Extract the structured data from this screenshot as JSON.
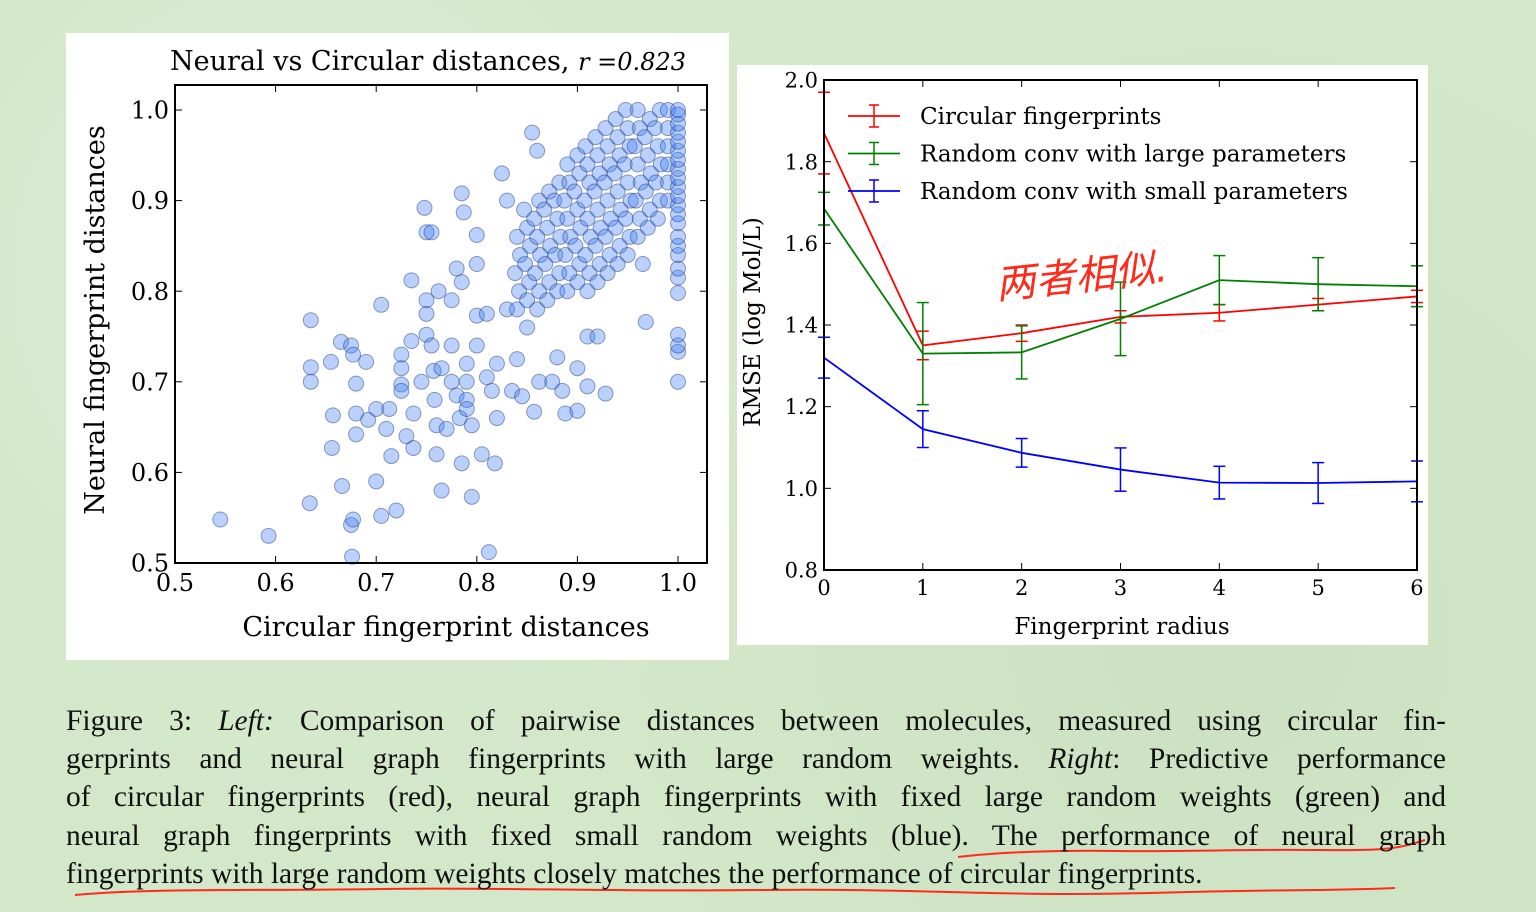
{
  "colors": {
    "background": "#d3e7c9",
    "scatter_fill": "#3a7bff",
    "red": "#ff0000",
    "green": "#008000",
    "blue": "#0000ff",
    "annotation": "#ff2a1a"
  },
  "chart_data": [
    {
      "type": "scatter",
      "title": "Neural vs Circular distances, ",
      "title_math": "r =0.823",
      "xlabel": "Circular fingerprint distances",
      "ylabel": "Neural fingerprint distances",
      "xlim": [
        0.5,
        1.03
      ],
      "ylim": [
        0.5,
        1.03
      ],
      "xticks": [
        "0.5",
        "0.6",
        "0.7",
        "0.8",
        "0.9",
        "1.0"
      ],
      "yticks": [
        "0.5",
        "0.6",
        "0.7",
        "0.8",
        "0.9",
        "1.0"
      ],
      "points": [
        [
          0.545,
          0.548
        ],
        [
          0.593,
          0.53
        ],
        [
          0.635,
          0.768
        ],
        [
          0.635,
          0.716
        ],
        [
          0.635,
          0.7
        ],
        [
          0.634,
          0.566
        ],
        [
          0.655,
          0.722
        ],
        [
          0.657,
          0.663
        ],
        [
          0.656,
          0.627
        ],
        [
          0.665,
          0.744
        ],
        [
          0.666,
          0.585
        ],
        [
          0.675,
          0.74
        ],
        [
          0.677,
          0.73
        ],
        [
          0.68,
          0.698
        ],
        [
          0.68,
          0.665
        ],
        [
          0.68,
          0.642
        ],
        [
          0.69,
          0.722
        ],
        [
          0.692,
          0.658
        ],
        [
          0.7,
          0.67
        ],
        [
          0.7,
          0.59
        ],
        [
          0.705,
          0.785
        ],
        [
          0.71,
          0.648
        ],
        [
          0.713,
          0.67
        ],
        [
          0.715,
          0.618
        ],
        [
          0.72,
          0.558
        ],
        [
          0.705,
          0.552
        ],
        [
          0.675,
          0.542
        ],
        [
          0.677,
          0.548
        ],
        [
          0.676,
          0.507
        ],
        [
          0.725,
          0.73
        ],
        [
          0.725,
          0.715
        ],
        [
          0.725,
          0.697
        ],
        [
          0.725,
          0.69
        ],
        [
          0.73,
          0.64
        ],
        [
          0.735,
          0.745
        ],
        [
          0.735,
          0.812
        ],
        [
          0.737,
          0.665
        ],
        [
          0.737,
          0.627
        ],
        [
          0.745,
          0.7
        ],
        [
          0.75,
          0.79
        ],
        [
          0.75,
          0.775
        ],
        [
          0.75,
          0.752
        ],
        [
          0.748,
          0.892
        ],
        [
          0.75,
          0.865
        ],
        [
          0.755,
          0.865
        ],
        [
          0.755,
          0.74
        ],
        [
          0.757,
          0.712
        ],
        [
          0.758,
          0.68
        ],
        [
          0.76,
          0.652
        ],
        [
          0.76,
          0.62
        ],
        [
          0.762,
          0.8
        ],
        [
          0.765,
          0.715
        ],
        [
          0.765,
          0.58
        ],
        [
          0.77,
          0.648
        ],
        [
          0.775,
          0.79
        ],
        [
          0.775,
          0.74
        ],
        [
          0.775,
          0.7
        ],
        [
          0.78,
          0.825
        ],
        [
          0.78,
          0.685
        ],
        [
          0.783,
          0.66
        ],
        [
          0.785,
          0.908
        ],
        [
          0.785,
          0.81
        ],
        [
          0.785,
          0.61
        ],
        [
          0.787,
          0.887
        ],
        [
          0.79,
          0.72
        ],
        [
          0.79,
          0.7
        ],
        [
          0.79,
          0.68
        ],
        [
          0.79,
          0.67
        ],
        [
          0.795,
          0.652
        ],
        [
          0.795,
          0.573
        ],
        [
          0.8,
          0.862
        ],
        [
          0.8,
          0.83
        ],
        [
          0.8,
          0.773
        ],
        [
          0.8,
          0.74
        ],
        [
          0.805,
          0.62
        ],
        [
          0.81,
          0.775
        ],
        [
          0.81,
          0.705
        ],
        [
          0.812,
          0.512
        ],
        [
          0.815,
          0.69
        ],
        [
          0.818,
          0.61
        ],
        [
          0.82,
          0.66
        ],
        [
          0.82,
          0.72
        ],
        [
          0.825,
          0.93
        ],
        [
          0.83,
          0.9
        ],
        [
          0.83,
          0.78
        ],
        [
          0.835,
          0.69
        ],
        [
          0.84,
          0.725
        ],
        [
          0.845,
          0.684
        ],
        [
          0.85,
          0.76
        ],
        [
          0.855,
          0.975
        ],
        [
          0.857,
          0.667
        ],
        [
          0.86,
          0.955
        ],
        [
          0.862,
          0.7
        ],
        [
          0.875,
          0.7
        ],
        [
          0.88,
          0.727
        ],
        [
          0.885,
          0.69
        ],
        [
          0.888,
          0.665
        ],
        [
          0.9,
          0.668
        ],
        [
          0.9,
          0.715
        ],
        [
          0.91,
          0.695
        ],
        [
          0.928,
          0.687
        ],
        [
          0.968,
          0.766
        ],
        [
          0.965,
          0.83
        ],
        [
          0.91,
          0.75
        ],
        [
          0.92,
          0.75
        ],
        [
          0.84,
          0.78
        ],
        [
          0.842,
          0.8
        ],
        [
          0.838,
          0.82
        ],
        [
          0.843,
          0.84
        ],
        [
          0.84,
          0.86
        ],
        [
          0.85,
          0.79
        ],
        [
          0.852,
          0.81
        ],
        [
          0.848,
          0.83
        ],
        [
          0.853,
          0.85
        ],
        [
          0.85,
          0.87
        ],
        [
          0.847,
          0.89
        ],
        [
          0.86,
          0.78
        ],
        [
          0.862,
          0.8
        ],
        [
          0.858,
          0.82
        ],
        [
          0.863,
          0.84
        ],
        [
          0.86,
          0.86
        ],
        [
          0.857,
          0.88
        ],
        [
          0.862,
          0.9
        ],
        [
          0.87,
          0.79
        ],
        [
          0.872,
          0.81
        ],
        [
          0.868,
          0.83
        ],
        [
          0.873,
          0.85
        ],
        [
          0.87,
          0.87
        ],
        [
          0.867,
          0.89
        ],
        [
          0.872,
          0.91
        ],
        [
          0.88,
          0.8
        ],
        [
          0.882,
          0.82
        ],
        [
          0.878,
          0.84
        ],
        [
          0.883,
          0.86
        ],
        [
          0.88,
          0.88
        ],
        [
          0.877,
          0.9
        ],
        [
          0.882,
          0.92
        ],
        [
          0.89,
          0.8
        ],
        [
          0.892,
          0.82
        ],
        [
          0.888,
          0.84
        ],
        [
          0.893,
          0.86
        ],
        [
          0.89,
          0.88
        ],
        [
          0.887,
          0.9
        ],
        [
          0.892,
          0.92
        ],
        [
          0.89,
          0.94
        ],
        [
          0.9,
          0.81
        ],
        [
          0.902,
          0.83
        ],
        [
          0.898,
          0.85
        ],
        [
          0.903,
          0.87
        ],
        [
          0.9,
          0.89
        ],
        [
          0.897,
          0.91
        ],
        [
          0.902,
          0.93
        ],
        [
          0.9,
          0.95
        ],
        [
          0.91,
          0.8
        ],
        [
          0.912,
          0.82
        ],
        [
          0.908,
          0.84
        ],
        [
          0.913,
          0.86
        ],
        [
          0.91,
          0.88
        ],
        [
          0.907,
          0.9
        ],
        [
          0.912,
          0.92
        ],
        [
          0.91,
          0.94
        ],
        [
          0.908,
          0.96
        ],
        [
          0.92,
          0.81
        ],
        [
          0.922,
          0.83
        ],
        [
          0.918,
          0.85
        ],
        [
          0.923,
          0.87
        ],
        [
          0.92,
          0.89
        ],
        [
          0.917,
          0.91
        ],
        [
          0.922,
          0.93
        ],
        [
          0.92,
          0.95
        ],
        [
          0.918,
          0.97
        ],
        [
          0.93,
          0.82
        ],
        [
          0.932,
          0.84
        ],
        [
          0.928,
          0.86
        ],
        [
          0.933,
          0.88
        ],
        [
          0.93,
          0.9
        ],
        [
          0.927,
          0.92
        ],
        [
          0.932,
          0.94
        ],
        [
          0.93,
          0.96
        ],
        [
          0.928,
          0.98
        ],
        [
          0.94,
          0.83
        ],
        [
          0.942,
          0.85
        ],
        [
          0.938,
          0.87
        ],
        [
          0.943,
          0.89
        ],
        [
          0.94,
          0.91
        ],
        [
          0.937,
          0.93
        ],
        [
          0.942,
          0.95
        ],
        [
          0.94,
          0.97
        ],
        [
          0.938,
          0.99
        ],
        [
          0.95,
          0.84
        ],
        [
          0.952,
          0.86
        ],
        [
          0.948,
          0.88
        ],
        [
          0.953,
          0.9
        ],
        [
          0.95,
          0.92
        ],
        [
          0.947,
          0.94
        ],
        [
          0.952,
          0.96
        ],
        [
          0.95,
          0.98
        ],
        [
          0.948,
          1.0
        ],
        [
          0.96,
          0.86
        ],
        [
          0.962,
          0.88
        ],
        [
          0.958,
          0.9
        ],
        [
          0.963,
          0.92
        ],
        [
          0.96,
          0.94
        ],
        [
          0.957,
          0.96
        ],
        [
          0.962,
          0.98
        ],
        [
          0.96,
          1.0
        ],
        [
          0.97,
          0.87
        ],
        [
          0.972,
          0.89
        ],
        [
          0.968,
          0.91
        ],
        [
          0.973,
          0.93
        ],
        [
          0.97,
          0.95
        ],
        [
          0.967,
          0.97
        ],
        [
          0.972,
          0.99
        ],
        [
          0.98,
          0.88
        ],
        [
          0.982,
          0.9
        ],
        [
          0.978,
          0.92
        ],
        [
          0.983,
          0.94
        ],
        [
          0.98,
          0.96
        ],
        [
          0.977,
          0.98
        ],
        [
          0.982,
          1.0
        ],
        [
          0.99,
          0.9
        ],
        [
          0.99,
          0.92
        ],
        [
          0.99,
          0.94
        ],
        [
          0.99,
          0.96
        ],
        [
          0.99,
          0.98
        ],
        [
          0.99,
          1.0
        ],
        [
          1.0,
          0.7
        ],
        [
          1.0,
          0.733
        ],
        [
          1.0,
          0.74
        ],
        [
          1.0,
          0.752
        ],
        [
          1.0,
          0.798
        ],
        [
          1.0,
          0.815
        ],
        [
          1.0,
          0.825
        ],
        [
          1.0,
          0.84
        ],
        [
          1.0,
          0.85
        ],
        [
          1.0,
          0.86
        ],
        [
          1.0,
          0.875
        ],
        [
          1.0,
          0.885
        ],
        [
          1.0,
          0.895
        ],
        [
          1.0,
          0.905
        ],
        [
          1.0,
          0.915
        ],
        [
          1.0,
          0.925
        ],
        [
          1.0,
          0.935
        ],
        [
          1.0,
          0.945
        ],
        [
          1.0,
          0.955
        ],
        [
          1.0,
          0.965
        ],
        [
          1.0,
          0.975
        ],
        [
          1.0,
          0.985
        ],
        [
          1.0,
          0.995
        ],
        [
          1.0,
          1.0
        ]
      ]
    },
    {
      "type": "line",
      "xlabel": "Fingerprint radius",
      "ylabel": "RMSE (log Mol/L)",
      "xlim": [
        0,
        6
      ],
      "ylim": [
        0.8,
        2.0
      ],
      "xticks": [
        "0",
        "1",
        "2",
        "3",
        "4",
        "5",
        "6"
      ],
      "yticks": [
        "0.8",
        "1.0",
        "1.2",
        "1.4",
        "1.6",
        "1.8",
        "2.0"
      ],
      "x": [
        0,
        1,
        2,
        3,
        4,
        5,
        6
      ],
      "legend_position": "top-left",
      "series": [
        {
          "name": "Circular fingerprints",
          "color": "#ff0000",
          "values": [
            1.87,
            1.35,
            1.38,
            1.42,
            1.43,
            1.45,
            1.47
          ],
          "errors": [
            0.1,
            0.035,
            0.02,
            0.015,
            0.02,
            0.015,
            0.015
          ]
        },
        {
          "name": "Random conv with large parameters",
          "color": "#008000",
          "values": [
            1.685,
            1.33,
            1.333,
            1.415,
            1.51,
            1.5,
            1.495
          ],
          "errors": [
            0.04,
            0.125,
            0.065,
            0.09,
            0.06,
            0.065,
            0.05
          ]
        },
        {
          "name": "Random conv with small parameters",
          "color": "#0000ff",
          "values": [
            1.32,
            1.145,
            1.087,
            1.046,
            1.014,
            1.013,
            1.017
          ],
          "errors": [
            0.05,
            0.045,
            0.035,
            0.053,
            0.04,
            0.05,
            0.05
          ]
        }
      ]
    }
  ],
  "annotation": {
    "handwritten_note": "两者相似."
  },
  "caption": {
    "line1": {
      "a": "Figure 3: ",
      "b": "Left:",
      "c": " Comparison of pairwise distances between molecules, measured using circular fin-"
    },
    "line2": {
      "a": "gerprints and neural graph fingerprints with large random weights. ",
      "b": "Right",
      "c": ": Predictive performance"
    },
    "line3": "of circular fingerprints (red), neural graph fingerprints with fixed large random weights (green) and",
    "line4": "neural graph fingerprints with fixed small random weights (blue). The performance of neural graph",
    "line5": "fingerprints with large random weights closely matches the performance of circular fingerprints."
  }
}
